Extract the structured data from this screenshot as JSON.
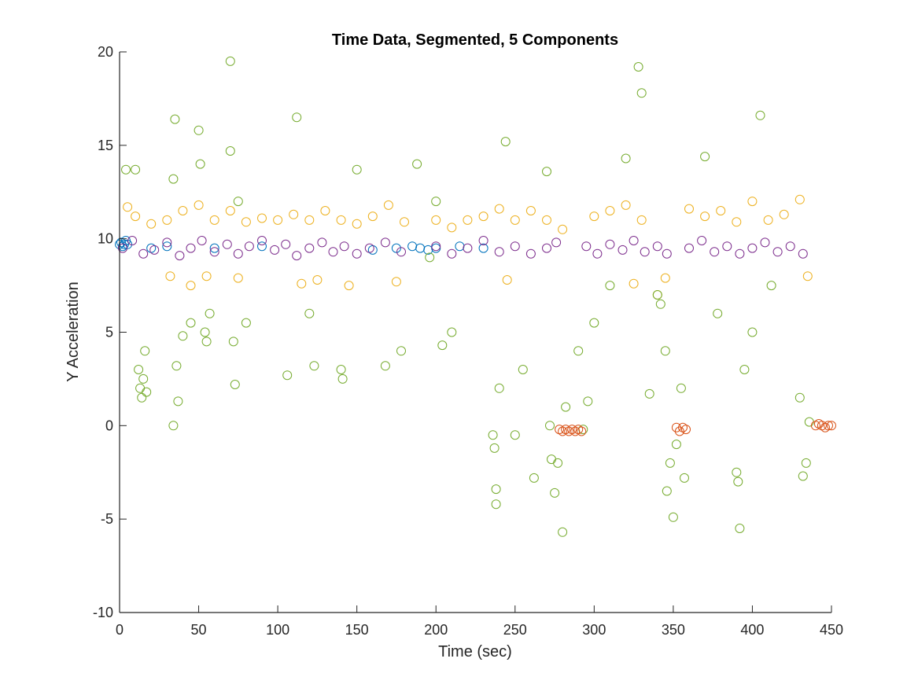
{
  "chart_data": {
    "type": "scatter",
    "title": "Time Data, Segmented, 5 Components",
    "xlabel": "Time (sec)",
    "ylabel": "Y Acceleration",
    "xlim": [
      0,
      450
    ],
    "ylim": [
      -10,
      20
    ],
    "xticks": [
      0,
      50,
      100,
      150,
      200,
      250,
      300,
      350,
      400,
      450
    ],
    "yticks": [
      -10,
      -5,
      0,
      5,
      10,
      15,
      20
    ],
    "xtick_labels": [
      "0",
      "50",
      "100",
      "150",
      "200",
      "250",
      "300",
      "350",
      "400",
      "450"
    ],
    "ytick_labels": [
      "-10",
      "-5",
      "0",
      "5",
      "10",
      "15",
      "20"
    ],
    "grid": false,
    "legend": "none",
    "marker": "open-circle",
    "series": [
      {
        "color": "#0072BD",
        "points": [
          [
            0,
            9.7
          ],
          [
            1,
            9.8
          ],
          [
            2,
            9.6
          ],
          [
            3,
            9.7
          ],
          [
            4,
            9.9
          ],
          [
            5,
            9.7
          ],
          [
            20,
            9.5
          ],
          [
            30,
            9.6
          ],
          [
            60,
            9.5
          ],
          [
            90,
            9.6
          ],
          [
            160,
            9.4
          ],
          [
            175,
            9.5
          ],
          [
            185,
            9.6
          ],
          [
            190,
            9.5
          ],
          [
            195,
            9.4
          ],
          [
            200,
            9.5
          ],
          [
            215,
            9.6
          ],
          [
            230,
            9.5
          ]
        ]
      },
      {
        "color": "#EDB120",
        "points": [
          [
            5,
            11.7
          ],
          [
            10,
            11.2
          ],
          [
            20,
            10.8
          ],
          [
            30,
            11.0
          ],
          [
            32,
            8.0
          ],
          [
            40,
            11.5
          ],
          [
            45,
            7.5
          ],
          [
            50,
            11.8
          ],
          [
            55,
            8.0
          ],
          [
            60,
            11.0
          ],
          [
            70,
            11.5
          ],
          [
            75,
            7.9
          ],
          [
            80,
            10.9
          ],
          [
            90,
            11.1
          ],
          [
            100,
            11.0
          ],
          [
            110,
            11.3
          ],
          [
            115,
            7.6
          ],
          [
            120,
            11.0
          ],
          [
            125,
            7.8
          ],
          [
            130,
            11.5
          ],
          [
            140,
            11.0
          ],
          [
            145,
            7.5
          ],
          [
            150,
            10.8
          ],
          [
            160,
            11.2
          ],
          [
            170,
            11.8
          ],
          [
            175,
            7.7
          ],
          [
            180,
            10.9
          ],
          [
            200,
            11.0
          ],
          [
            210,
            10.6
          ],
          [
            220,
            11.0
          ],
          [
            230,
            11.2
          ],
          [
            240,
            11.6
          ],
          [
            245,
            7.8
          ],
          [
            250,
            11.0
          ],
          [
            260,
            11.5
          ],
          [
            270,
            11.0
          ],
          [
            280,
            10.5
          ],
          [
            300,
            11.2
          ],
          [
            310,
            11.5
          ],
          [
            320,
            11.8
          ],
          [
            325,
            7.6
          ],
          [
            330,
            11.0
          ],
          [
            340,
            7.0
          ],
          [
            345,
            7.9
          ],
          [
            360,
            11.6
          ],
          [
            370,
            11.2
          ],
          [
            380,
            11.5
          ],
          [
            390,
            10.9
          ],
          [
            400,
            12.0
          ],
          [
            410,
            11.0
          ],
          [
            420,
            11.3
          ],
          [
            430,
            12.1
          ],
          [
            435,
            8.0
          ]
        ]
      },
      {
        "color": "#7E2F8E",
        "points": [
          [
            2,
            9.5
          ],
          [
            8,
            9.9
          ],
          [
            15,
            9.2
          ],
          [
            22,
            9.4
          ],
          [
            30,
            9.8
          ],
          [
            38,
            9.1
          ],
          [
            45,
            9.5
          ],
          [
            52,
            9.9
          ],
          [
            60,
            9.3
          ],
          [
            68,
            9.7
          ],
          [
            75,
            9.2
          ],
          [
            82,
            9.6
          ],
          [
            90,
            9.9
          ],
          [
            98,
            9.4
          ],
          [
            105,
            9.7
          ],
          [
            112,
            9.1
          ],
          [
            120,
            9.5
          ],
          [
            128,
            9.8
          ],
          [
            135,
            9.3
          ],
          [
            142,
            9.6
          ],
          [
            150,
            9.2
          ],
          [
            158,
            9.5
          ],
          [
            168,
            9.8
          ],
          [
            178,
            9.3
          ],
          [
            200,
            9.6
          ],
          [
            210,
            9.2
          ],
          [
            220,
            9.5
          ],
          [
            230,
            9.9
          ],
          [
            240,
            9.3
          ],
          [
            250,
            9.6
          ],
          [
            260,
            9.2
          ],
          [
            270,
            9.5
          ],
          [
            276,
            9.8
          ],
          [
            295,
            9.6
          ],
          [
            302,
            9.2
          ],
          [
            310,
            9.7
          ],
          [
            318,
            9.4
          ],
          [
            325,
            9.9
          ],
          [
            332,
            9.3
          ],
          [
            340,
            9.6
          ],
          [
            346,
            9.2
          ],
          [
            360,
            9.5
          ],
          [
            368,
            9.9
          ],
          [
            376,
            9.3
          ],
          [
            384,
            9.6
          ],
          [
            392,
            9.2
          ],
          [
            400,
            9.5
          ],
          [
            408,
            9.8
          ],
          [
            416,
            9.3
          ],
          [
            424,
            9.6
          ],
          [
            432,
            9.2
          ]
        ]
      },
      {
        "color": "#77AC30",
        "points": [
          [
            4,
            13.7
          ],
          [
            10,
            13.7
          ],
          [
            12,
            3.0
          ],
          [
            13,
            2.0
          ],
          [
            14,
            1.5
          ],
          [
            15,
            2.5
          ],
          [
            16,
            4.0
          ],
          [
            17,
            1.8
          ],
          [
            34,
            0.0
          ],
          [
            35,
            16.4
          ],
          [
            34,
            13.2
          ],
          [
            36,
            3.2
          ],
          [
            37,
            1.3
          ],
          [
            40,
            4.8
          ],
          [
            45,
            5.5
          ],
          [
            50,
            15.8
          ],
          [
            51,
            14.0
          ],
          [
            54,
            5.0
          ],
          [
            55,
            4.5
          ],
          [
            57,
            6.0
          ],
          [
            70,
            19.5
          ],
          [
            70,
            14.7
          ],
          [
            72,
            4.5
          ],
          [
            73,
            2.2
          ],
          [
            75,
            12.0
          ],
          [
            80,
            5.5
          ],
          [
            106,
            2.7
          ],
          [
            112,
            16.5
          ],
          [
            120,
            6.0
          ],
          [
            123,
            3.2
          ],
          [
            140,
            3.0
          ],
          [
            141,
            2.5
          ],
          [
            150,
            13.7
          ],
          [
            168,
            3.2
          ],
          [
            178,
            4.0
          ],
          [
            188,
            14.0
          ],
          [
            196,
            9.0
          ],
          [
            200,
            12.0
          ],
          [
            204,
            4.3
          ],
          [
            210,
            5.0
          ],
          [
            236,
            -0.5
          ],
          [
            237,
            -1.2
          ],
          [
            238,
            -4.2
          ],
          [
            238,
            -3.4
          ],
          [
            240,
            2.0
          ],
          [
            244,
            15.2
          ],
          [
            250,
            -0.5
          ],
          [
            255,
            3.0
          ],
          [
            262,
            -2.8
          ],
          [
            270,
            13.6
          ],
          [
            272,
            0.0
          ],
          [
            273,
            -1.8
          ],
          [
            275,
            -3.6
          ],
          [
            277,
            -2.0
          ],
          [
            280,
            -5.7
          ],
          [
            282,
            1.0
          ],
          [
            290,
            4.0
          ],
          [
            293,
            -0.2
          ],
          [
            296,
            1.3
          ],
          [
            300,
            5.5
          ],
          [
            310,
            7.5
          ],
          [
            320,
            14.3
          ],
          [
            328,
            19.2
          ],
          [
            330,
            17.8
          ],
          [
            335,
            1.7
          ],
          [
            340,
            7.0
          ],
          [
            342,
            6.5
          ],
          [
            345,
            4.0
          ],
          [
            346,
            -3.5
          ],
          [
            348,
            -2.0
          ],
          [
            350,
            -4.9
          ],
          [
            352,
            -1.0
          ],
          [
            355,
            2.0
          ],
          [
            357,
            -2.8
          ],
          [
            370,
            14.4
          ],
          [
            378,
            6.0
          ],
          [
            390,
            -2.5
          ],
          [
            391,
            -3.0
          ],
          [
            392,
            -5.5
          ],
          [
            395,
            3.0
          ],
          [
            400,
            5.0
          ],
          [
            405,
            16.6
          ],
          [
            412,
            7.5
          ],
          [
            430,
            1.5
          ],
          [
            432,
            -2.7
          ],
          [
            434,
            -2.0
          ],
          [
            436,
            0.2
          ]
        ]
      },
      {
        "color": "#D95319",
        "points": [
          [
            278,
            -0.2
          ],
          [
            280,
            -0.3
          ],
          [
            282,
            -0.2
          ],
          [
            284,
            -0.3
          ],
          [
            286,
            -0.2
          ],
          [
            288,
            -0.3
          ],
          [
            290,
            -0.2
          ],
          [
            292,
            -0.3
          ],
          [
            352,
            -0.1
          ],
          [
            354,
            -0.3
          ],
          [
            356,
            -0.1
          ],
          [
            358,
            -0.2
          ],
          [
            440,
            0.0
          ],
          [
            442,
            0.1
          ],
          [
            444,
            0.0
          ],
          [
            446,
            -0.1
          ],
          [
            448,
            0.0
          ],
          [
            450,
            0.0
          ]
        ]
      }
    ]
  }
}
